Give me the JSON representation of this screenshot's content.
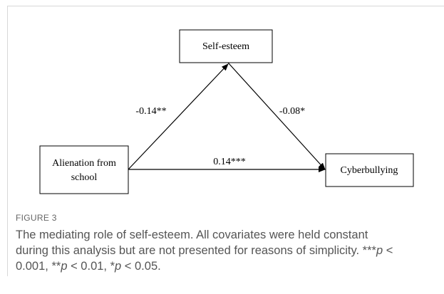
{
  "nodes": [
    {
      "label": "Self-esteem"
    },
    {
      "label": "Alienation from school"
    },
    {
      "label": "Cyberbullying"
    }
  ],
  "edges": [
    {
      "label": "-0.14**"
    },
    {
      "label": "-0.08*"
    },
    {
      "label": "0.14***"
    }
  ],
  "figure": {
    "label": "FIGURE 3",
    "caption": [
      "The mediating role of self-esteem. All covariates were held constant during this analysis but are not presented for reasons of simplicity. ***",
      "p",
      " < 0.001, **",
      "p",
      " < 0.01, *",
      "p",
      " < 0.05."
    ]
  }
}
